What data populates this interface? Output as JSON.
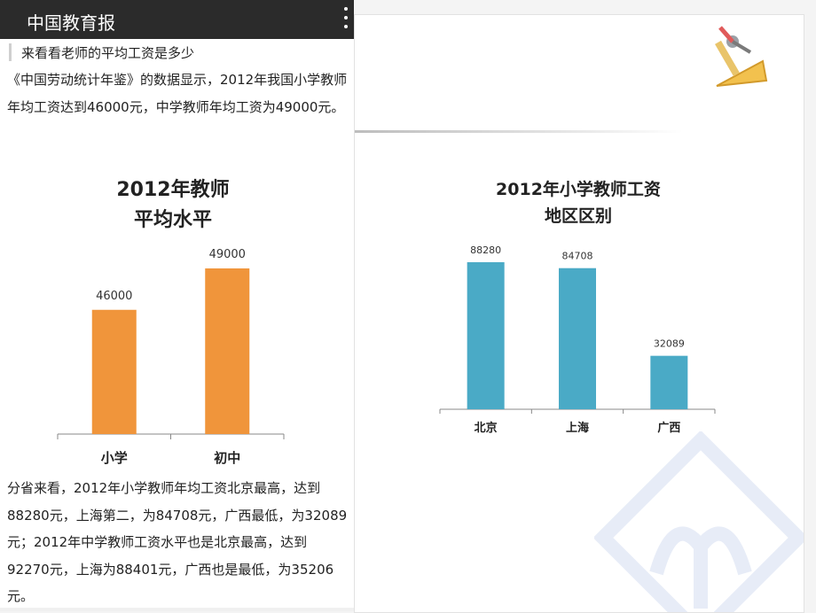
{
  "app": {
    "title": "中国教育报"
  },
  "article": {
    "quote": "来看看老师的平均工资是多少",
    "para1": "《中国劳动统计年鉴》的数据显示，2012年我国小学教师年均工资达到46000元，中学教师年均工资为49000元。",
    "para2": "分省来看，2012年小学教师年均工资北京最高，达到88280元，上海第二，为84708元，广西最低，为32089元；2012年中学教师工资水平也是北京最高，达到92270元，上海为88401元，广西也是最低，为35206元。"
  },
  "chart_data": [
    {
      "type": "bar",
      "title_lines": [
        "2012年教师",
        "平均水平"
      ],
      "categories": [
        "小学",
        "初中"
      ],
      "values": [
        46000,
        49000
      ],
      "value_labels": [
        "46000",
        "49000"
      ],
      "color": "#f0953b",
      "baseline": 37000
    },
    {
      "type": "bar",
      "title_lines": [
        "2012年小学教师工资",
        "地区区别"
      ],
      "categories": [
        "北京",
        "上海",
        "广西"
      ],
      "values": [
        88280,
        84708,
        32089
      ],
      "value_labels": [
        "88280",
        "84708",
        "32089"
      ],
      "color": "#4aaac6"
    }
  ]
}
